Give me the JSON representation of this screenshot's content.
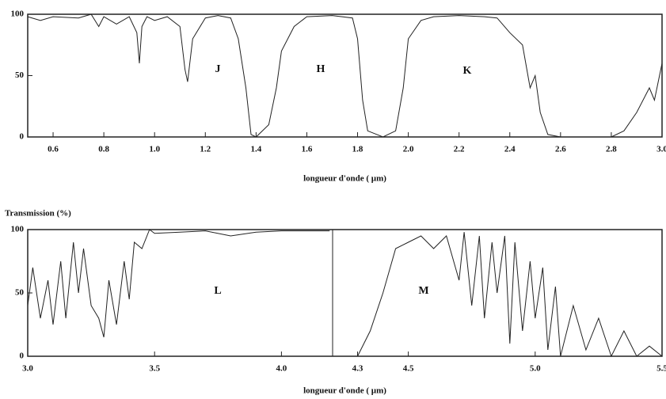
{
  "chart_data": [
    {
      "type": "line",
      "x_label": "longueur d'onde ( µm)",
      "color": "#222222",
      "annotations": [
        "J",
        "H",
        "K"
      ],
      "x": [
        0.5,
        0.55,
        0.6,
        0.7,
        0.75,
        0.78,
        0.8,
        0.85,
        0.9,
        0.93,
        0.94,
        0.95,
        0.97,
        1.0,
        1.05,
        1.1,
        1.12,
        1.13,
        1.15,
        1.2,
        1.25,
        1.3,
        1.33,
        1.36,
        1.38,
        1.4,
        1.45,
        1.48,
        1.5,
        1.55,
        1.6,
        1.7,
        1.78,
        1.8,
        1.82,
        1.84,
        1.9,
        1.95,
        1.98,
        2.0,
        2.05,
        2.1,
        2.2,
        2.3,
        2.35,
        2.4,
        2.45,
        2.48,
        2.5,
        2.52,
        2.55,
        2.6,
        2.7,
        2.8,
        2.85,
        2.9,
        2.95,
        2.97,
        3.0
      ],
      "values": [
        98,
        95,
        98,
        97,
        100,
        90,
        98,
        92,
        98,
        85,
        60,
        90,
        98,
        95,
        98,
        90,
        55,
        45,
        80,
        97,
        99,
        97,
        80,
        40,
        2,
        0,
        10,
        40,
        70,
        90,
        98,
        99,
        97,
        80,
        30,
        5,
        0,
        5,
        40,
        80,
        95,
        98,
        99,
        98,
        97,
        85,
        75,
        40,
        50,
        20,
        2,
        0,
        0,
        0,
        5,
        20,
        40,
        30,
        60
      ],
      "xlim": [
        0.5,
        3.0
      ],
      "ylim": [
        0,
        100
      ],
      "xticks": [
        0.6,
        0.8,
        {
          "value": 1.0,
          "label": "1.0"
        },
        1.2,
        1.4,
        1.6,
        1.8,
        {
          "value": 2.0,
          "label": "2.0"
        },
        2.2,
        2.4,
        2.6,
        2.8,
        {
          "value": 3.0,
          "label": "3.0"
        }
      ],
      "yticks": [
        0,
        50,
        100
      ]
    },
    {
      "type": "line",
      "title": "Transmission (%)",
      "x_label": "longueur d'onde ( µm)",
      "color": "#222222",
      "annotations": [
        "L",
        "M"
      ],
      "x": [
        3.0,
        3.02,
        3.05,
        3.08,
        3.1,
        3.13,
        3.15,
        3.18,
        3.2,
        3.22,
        3.25,
        3.28,
        3.3,
        3.32,
        3.35,
        3.38,
        3.4,
        3.42,
        3.45,
        3.48,
        3.5,
        3.6,
        3.7,
        3.8,
        3.9,
        4.0,
        4.1,
        4.19,
        4.2,
        4.3,
        4.35,
        4.4,
        4.45,
        4.5,
        4.55,
        4.6,
        4.65,
        4.7,
        4.72,
        4.75,
        4.78,
        4.8,
        4.83,
        4.85,
        4.88,
        4.9,
        4.92,
        4.95,
        4.98,
        5.0,
        5.03,
        5.05,
        5.08,
        5.1,
        5.15,
        5.2,
        5.25,
        5.3,
        5.35,
        5.4,
        5.45,
        5.5
      ],
      "values": [
        40,
        70,
        30,
        60,
        25,
        75,
        30,
        90,
        50,
        85,
        40,
        30,
        15,
        60,
        25,
        75,
        45,
        90,
        85,
        100,
        97,
        98,
        99,
        95,
        98,
        99,
        99,
        99,
        null,
        0,
        20,
        50,
        85,
        90,
        95,
        85,
        95,
        60,
        98,
        40,
        95,
        30,
        90,
        50,
        95,
        10,
        90,
        20,
        75,
        30,
        70,
        5,
        55,
        0,
        40,
        5,
        30,
        0,
        20,
        0,
        8,
        0
      ],
      "xlim": [
        3.0,
        5.5
      ],
      "ylim": [
        0,
        100
      ],
      "xticks": [
        {
          "value": 3.0,
          "label": "3.0"
        },
        3.5,
        {
          "value": 4.0,
          "label": "4.0"
        },
        4.3,
        4.5,
        {
          "value": 5.0,
          "label": "5.0"
        },
        5.5
      ],
      "yticks": [
        0,
        50,
        100
      ]
    }
  ]
}
